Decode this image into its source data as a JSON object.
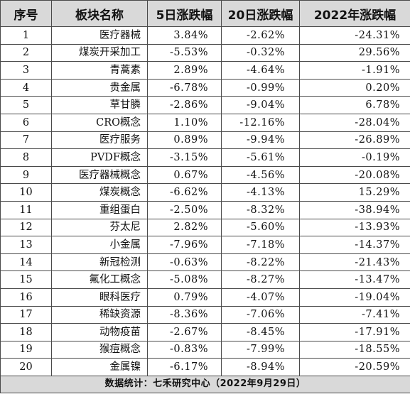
{
  "table": {
    "headers": [
      "序号",
      "板块名称",
      "5日涨跌幅",
      "20日涨跌幅",
      "2022年涨跌幅"
    ],
    "rows": [
      [
        "1",
        "医疗器械",
        "3.84%",
        "-2.62%",
        "-24.31%"
      ],
      [
        "2",
        "煤炭开采加工",
        "-5.53%",
        "-0.32%",
        "29.56%"
      ],
      [
        "3",
        "青蒿素",
        "2.89%",
        "-4.64%",
        "-1.91%"
      ],
      [
        "4",
        "贵金属",
        "-6.78%",
        "-0.99%",
        "0.20%"
      ],
      [
        "5",
        "草甘膦",
        "-2.86%",
        "-9.04%",
        "6.78%"
      ],
      [
        "6",
        "CRO概念",
        "1.10%",
        "-12.16%",
        "-28.04%"
      ],
      [
        "7",
        "医疗服务",
        "0.89%",
        "-9.94%",
        "-26.89%"
      ],
      [
        "8",
        "PVDF概念",
        "-3.15%",
        "-5.61%",
        "-0.19%"
      ],
      [
        "9",
        "医疗器械概念",
        "0.67%",
        "-4.56%",
        "-20.08%"
      ],
      [
        "10",
        "煤炭概念",
        "-6.62%",
        "-4.13%",
        "15.29%"
      ],
      [
        "11",
        "重组蛋白",
        "-2.50%",
        "-8.32%",
        "-38.94%"
      ],
      [
        "12",
        "芬太尼",
        "2.82%",
        "-5.60%",
        "-13.93%"
      ],
      [
        "13",
        "小金属",
        "-7.96%",
        "-7.18%",
        "-14.37%"
      ],
      [
        "14",
        "新冠检测",
        "-0.63%",
        "-8.22%",
        "-21.43%"
      ],
      [
        "15",
        "氟化工概念",
        "-5.08%",
        "-8.27%",
        "-13.47%"
      ],
      [
        "16",
        "眼科医疗",
        "0.79%",
        "-4.07%",
        "-19.04%"
      ],
      [
        "17",
        "稀缺资源",
        "-8.36%",
        "-7.06%",
        "-7.41%"
      ],
      [
        "18",
        "动物疫苗",
        "-2.67%",
        "-8.45%",
        "-17.91%"
      ],
      [
        "19",
        "猴痘概念",
        "-0.83%",
        "-7.99%",
        "-18.55%"
      ],
      [
        "20",
        "金属镍",
        "-6.17%",
        "-8.94%",
        "-20.59%"
      ]
    ],
    "footer": "数据统计：七禾研究中心（2022年9月29日）"
  }
}
